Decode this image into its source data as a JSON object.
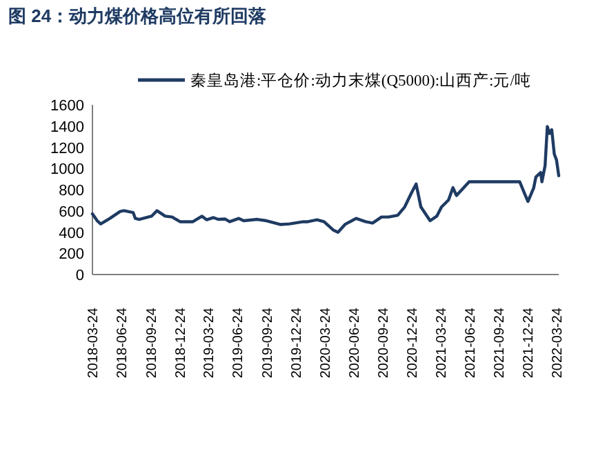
{
  "chart_data": {
    "type": "line",
    "title": "图 24：动力煤价格高位有所回落",
    "x": [
      "2018-03-24",
      "2018-04-08",
      "2018-04-19",
      "2018-05-18",
      "2018-06-19",
      "2018-07-01",
      "2018-07-30",
      "2018-08-06",
      "2018-08-18",
      "2018-09-26",
      "2018-10-13",
      "2018-11-08",
      "2018-11-30",
      "2018-12-25",
      "2019-02-03",
      "2019-03-04",
      "2019-03-19",
      "2019-04-09",
      "2019-04-24",
      "2019-05-15",
      "2019-05-30",
      "2019-06-28",
      "2019-07-13",
      "2019-08-25",
      "2019-09-23",
      "2019-11-05",
      "2019-12-04",
      "2020-01-17",
      "2020-01-31",
      "2020-02-29",
      "2020-03-22",
      "2020-04-20",
      "2020-05-05",
      "2020-05-27",
      "2020-07-01",
      "2020-07-31",
      "2020-08-22",
      "2020-09-19",
      "2020-10-11",
      "2020-11-09",
      "2020-12-01",
      "2020-12-22",
      "2021-01-06",
      "2021-01-21",
      "2021-02-19",
      "2021-03-12",
      "2021-03-27",
      "2021-04-18",
      "2021-05-02",
      "2021-05-13",
      "2021-06-22",
      "2021-11-28",
      "2021-12-13",
      "2021-12-24",
      "2022-01-11",
      "2022-01-18",
      "2022-02-02",
      "2022-02-06",
      "2022-02-16",
      "2022-02-23",
      "2022-03-02",
      "2022-03-09",
      "2022-03-17",
      "2022-03-24",
      "2022-03-31"
    ],
    "series": [
      {
        "name": "秦皇岛港:平仓价:动力末煤(Q5000):山西产:元/吨",
        "color": "#1f3b63",
        "values": [
          572,
          507,
          477,
          529,
          594,
          602,
          585,
          529,
          520,
          550,
          602,
          550,
          542,
          498,
          498,
          550,
          516,
          537,
          520,
          524,
          498,
          529,
          507,
          520,
          507,
          472,
          477,
          498,
          498,
          516,
          498,
          420,
          399,
          472,
          529,
          498,
          485,
          542,
          542,
          559,
          637,
          767,
          854,
          637,
          507,
          550,
          637,
          702,
          819,
          745,
          875,
          875,
          767,
          689,
          815,
          919,
          962,
          875,
          1027,
          1395,
          1330,
          1365,
          1135,
          1079,
          932
        ]
      }
    ],
    "xlim": [
      "2018-03-24",
      "2022-03-31"
    ],
    "xticks": [
      "2018-03-24",
      "2018-06-24",
      "2018-09-24",
      "2018-12-24",
      "2019-03-24",
      "2019-06-24",
      "2019-09-24",
      "2019-12-24",
      "2020-03-24",
      "2020-06-24",
      "2020-09-24",
      "2020-12-24",
      "2021-03-24",
      "2021-06-24",
      "2021-09-24",
      "2021-12-24",
      "2022-03-24"
    ],
    "ylim": [
      0,
      1600
    ],
    "yticks": [
      0,
      200,
      400,
      600,
      800,
      1000,
      1200,
      1400,
      1600
    ],
    "legend": "top",
    "grid": false,
    "marker": "none",
    "line_style": "solid"
  }
}
